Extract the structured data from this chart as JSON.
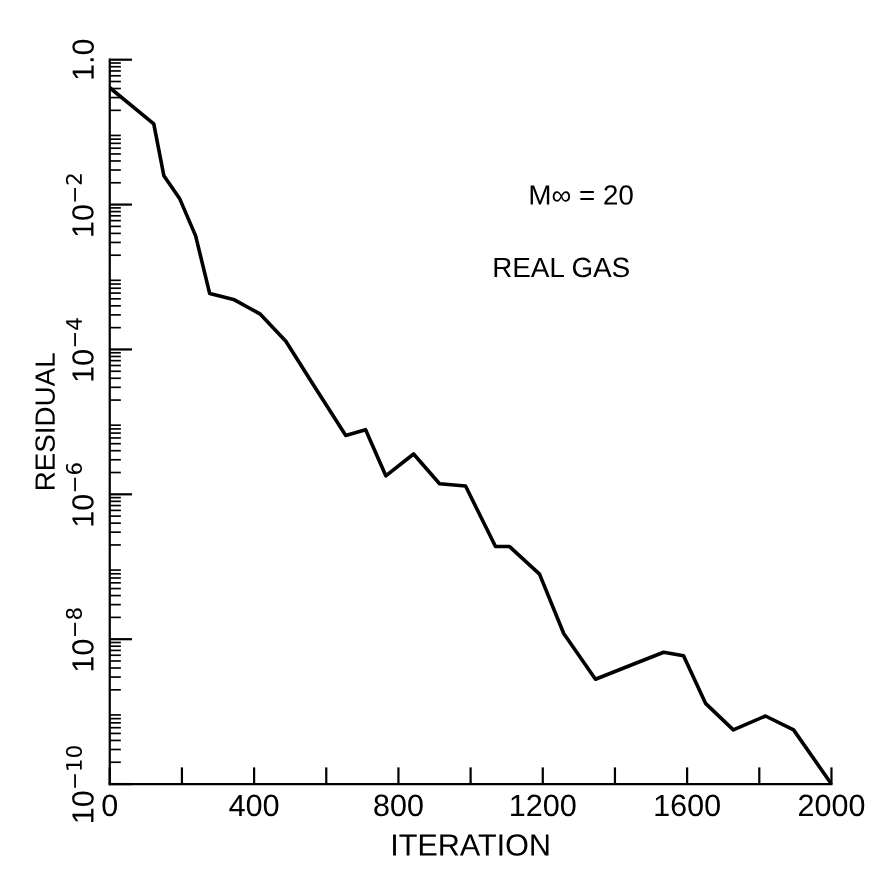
{
  "chart_data": {
    "type": "line",
    "xlabel": "ITERATION",
    "ylabel": "RESIDUAL",
    "log": true,
    "grid": false,
    "legend": false,
    "marker": "none",
    "line_style": "solid",
    "annotations": [
      "M∞ = 20",
      "REAL GAS"
    ],
    "xlim": [
      0,
      2000
    ],
    "ylim": [
      1e-10,
      1
    ],
    "xticks": [
      0,
      {
        "value": 200,
        "label": null
      },
      400,
      {
        "value": 600,
        "label": null
      },
      800,
      {
        "value": 1000,
        "label": null
      },
      1200,
      {
        "value": 1400,
        "label": null
      },
      1600,
      {
        "value": 1800,
        "label": null
      },
      2000
    ],
    "yticks": [
      {
        "value": 1e-10,
        "label": "10$^{−10}$"
      },
      {
        "value": 1e-08,
        "label": "10$^{−8}$"
      },
      {
        "value": 1e-06,
        "label": "10$^{−6}$"
      },
      {
        "value": 0.0001,
        "label": "10$^{−4}$"
      },
      {
        "value": 0.01,
        "label": "10$^{−2}$"
      },
      {
        "value": 1,
        "label": "1.0"
      }
    ],
    "x": [
      0,
      122,
      150,
      194,
      238,
      277,
      343,
      416,
      488,
      565,
      654,
      709,
      765,
      842,
      914,
      986,
      1069,
      1108,
      1191,
      1258,
      1346,
      1440,
      1535,
      1590,
      1651,
      1728,
      1817,
      1895,
      2000
    ],
    "series": [
      {
        "color": "#000000",
        "values": [
          0.41,
          0.13,
          0.025,
          0.012,
          0.0037,
          0.00059,
          0.00049,
          0.00031,
          0.00013,
          3.2e-05,
          6.5e-06,
          7.8e-06,
          1.8e-06,
          3.6e-06,
          1.4e-06,
          1.3e-06,
          1.9e-07,
          1.9e-07,
          7.9e-08,
          1.2e-08,
          2.8e-09,
          4.3e-09,
          6.6e-09,
          5.9e-09,
          1.3e-09,
          5.6e-10,
          8.7e-10,
          5.6e-10,
          1e-10
        ]
      }
    ]
  }
}
